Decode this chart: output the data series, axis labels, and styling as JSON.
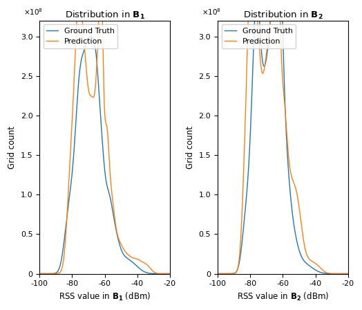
{
  "title1": "Distribution in $\\mathbf{B_1}$",
  "title2": "Distribution in $\\mathbf{B_2}$",
  "xlabel1": "RSS value in $\\mathbf{B_1}$ (dBm)",
  "xlabel2": "RSS value in $\\mathbf{B_2}$ (dBm)",
  "ylabel": "Grid count",
  "xlim": [
    -100,
    -20
  ],
  "ylim": [
    0,
    320000000.0
  ],
  "xticks": [
    -100,
    -80,
    -60,
    -40,
    -20
  ],
  "yticks": [
    0,
    50000000.0,
    100000000.0,
    150000000.0,
    200000000.0,
    250000000.0,
    300000000.0
  ],
  "ytick_labels": [
    "0",
    "0.5",
    "1.0",
    "1.5",
    "2.0",
    "2.5",
    "3.0"
  ],
  "scale_label": "$\\times10^8$",
  "gt_color": "#1f77b4",
  "pred_color": "#ff7f0e",
  "legend_labels": [
    "Ground Truth",
    "Prediction"
  ],
  "background_color": "#ffffff"
}
